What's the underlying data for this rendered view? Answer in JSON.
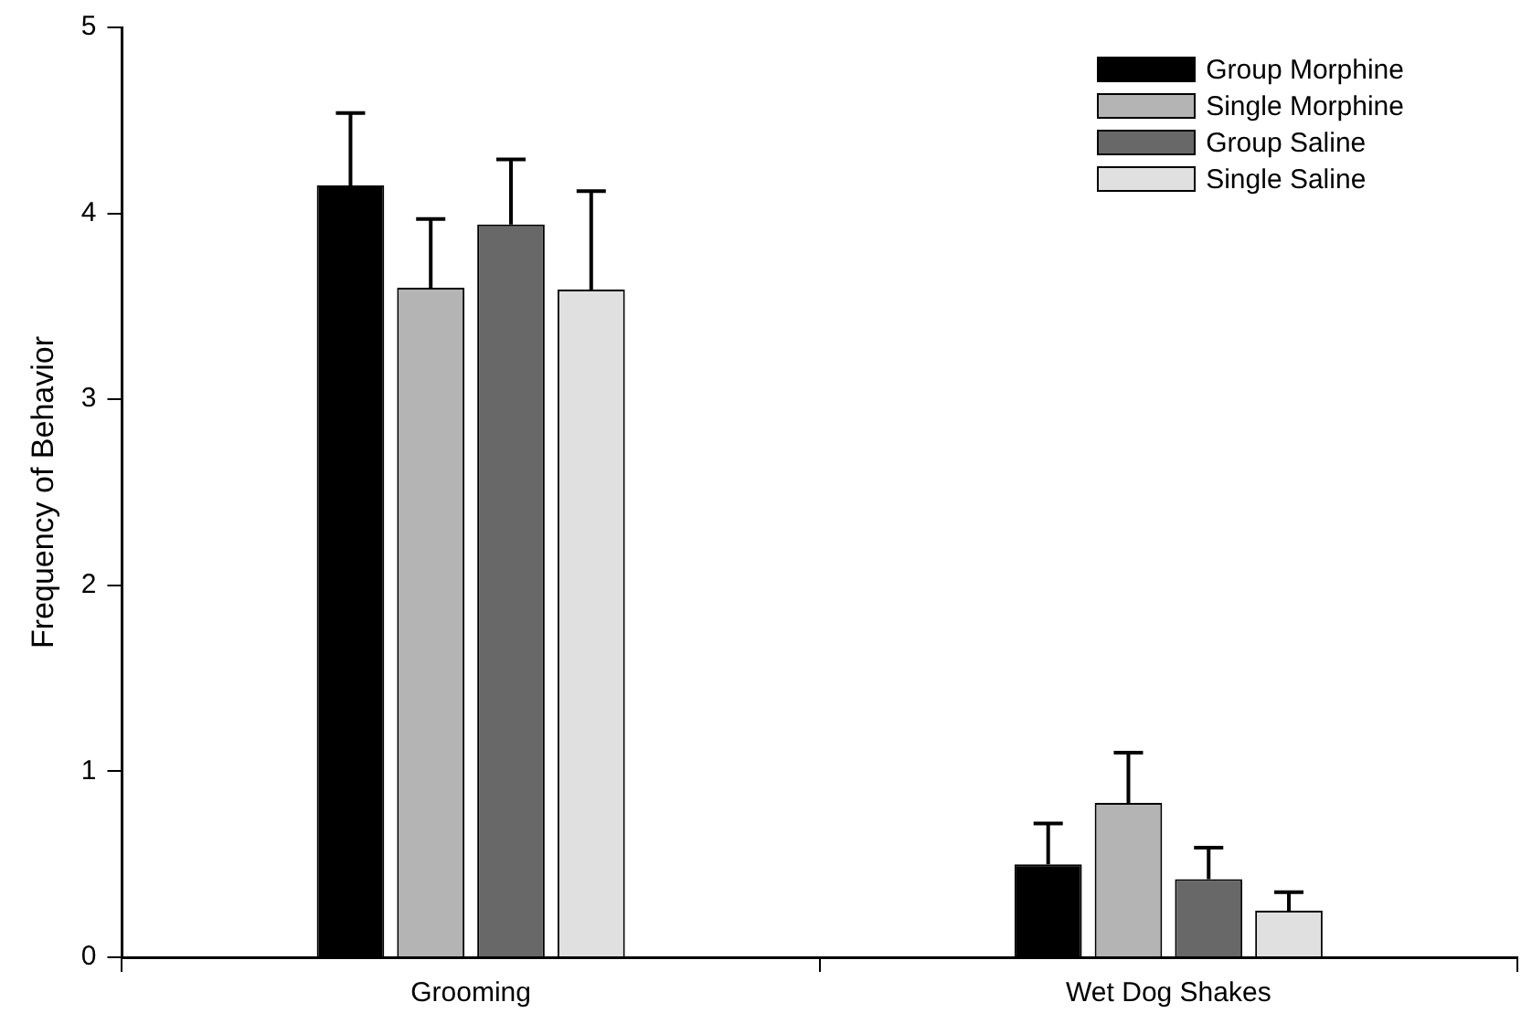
{
  "chart_data": {
    "type": "bar",
    "ylabel": "Frequency of Behavior",
    "categories": [
      "Grooming",
      "Wet Dog Shakes"
    ],
    "series": [
      {
        "name": "Group Morphine",
        "color": "#000000",
        "values": [
          4.15,
          0.5
        ],
        "errors": [
          [
            4.15,
            4.54
          ],
          [
            0.5,
            0.72
          ]
        ]
      },
      {
        "name": "Single Morphine",
        "color": "#b4b4b4",
        "values": [
          3.6,
          0.83
        ],
        "errors": [
          [
            3.6,
            3.97
          ],
          [
            0.83,
            1.1
          ]
        ]
      },
      {
        "name": "Group Saline",
        "color": "#686868",
        "values": [
          3.94,
          0.42
        ],
        "errors": [
          [
            3.94,
            4.29
          ],
          [
            0.42,
            0.59
          ]
        ]
      },
      {
        "name": "Single Saline",
        "color": "#e0e0e0",
        "values": [
          3.59,
          0.25
        ],
        "errors": [
          [
            3.59,
            4.12
          ],
          [
            0.25,
            0.35
          ]
        ]
      }
    ],
    "ylim": [
      0,
      5
    ],
    "yticks": [
      0,
      1,
      2,
      3,
      4,
      5
    ],
    "grid": false,
    "legend": "top right"
  }
}
